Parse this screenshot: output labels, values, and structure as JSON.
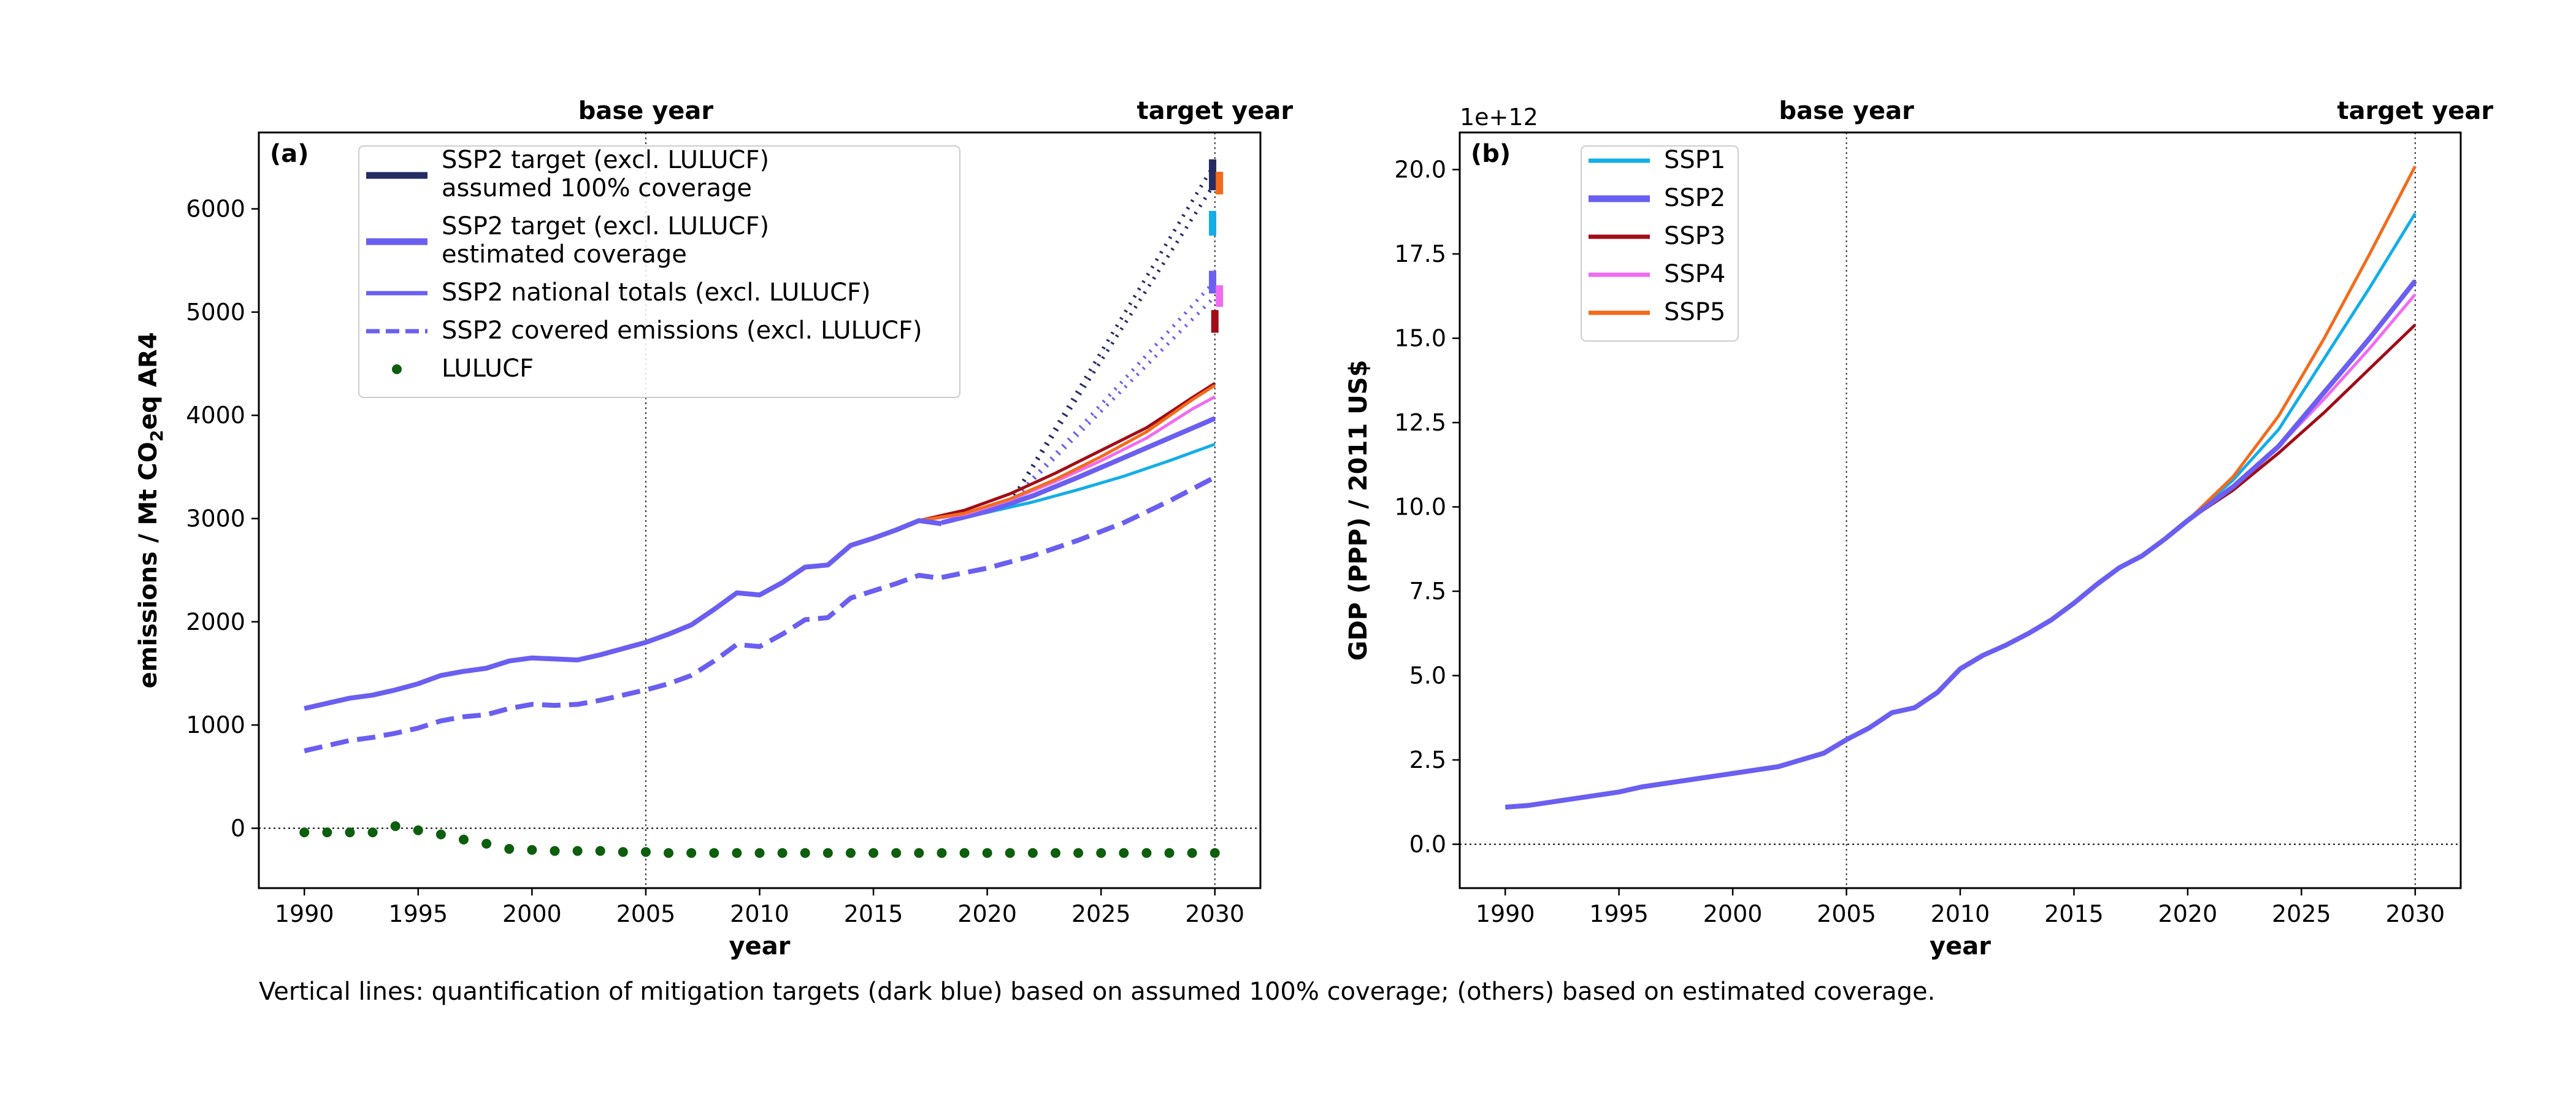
{
  "caption": "Vertical lines: quantification of mitigation targets (dark blue) based on assumed 100% coverage; (others) based on estimated coverage.",
  "colors": {
    "ssp1": "#12aee8",
    "ssp2": "#6a5ff0",
    "ssp3": "#a00d18",
    "ssp4": "#ef6cf0",
    "ssp5": "#f26b1c",
    "target_dark": "#262b62",
    "lulucf": "#0d5e0d"
  },
  "chart_data": [
    {
      "type": "line",
      "panel_label": "(a)",
      "xlabel": "year",
      "ylabel": "emissions / Mt CO₂eq AR4",
      "ylabel_parts": [
        "emissions / Mt CO",
        "2",
        "eq AR4"
      ],
      "xlim": [
        1988,
        2032
      ],
      "ylim": [
        -580,
        6740
      ],
      "xticks": [
        1990,
        1995,
        2000,
        2005,
        2010,
        2015,
        2020,
        2025,
        2030
      ],
      "yticks": [
        0,
        1000,
        2000,
        3000,
        4000,
        5000,
        6000
      ],
      "vlines": [
        {
          "x": 2005,
          "label": "base year"
        },
        {
          "x": 2030,
          "label": "target year"
        }
      ],
      "legend": {
        "placement": "top-left",
        "entries": [
          {
            "text": [
              "SSP2 target (excl. LULUCF)",
              "assumed 100% coverage"
            ],
            "color": "target_dark",
            "style": "thick"
          },
          {
            "text": [
              "SSP2 target (excl. LULUCF)",
              "estimated coverage"
            ],
            "color": "ssp2",
            "style": "thick"
          },
          {
            "text": [
              "SSP2 national totals (excl. LULUCF)"
            ],
            "color": "ssp2",
            "style": "solid"
          },
          {
            "text": [
              "SSP2 covered emissions (excl. LULUCF)"
            ],
            "color": "ssp2",
            "style": "dashed"
          },
          {
            "text": [
              "LULUCF"
            ],
            "color": "lulucf",
            "style": "dot"
          }
        ]
      },
      "historical_national": {
        "x": [
          1990,
          1991,
          1992,
          1993,
          1994,
          1995,
          1996,
          1997,
          1998,
          1999,
          2000,
          2001,
          2002,
          2003,
          2004,
          2005,
          2006,
          2007,
          2008,
          2009,
          2010,
          2011,
          2012,
          2013,
          2014,
          2015,
          2016,
          2017,
          2018
        ],
        "y": [
          1160,
          1210,
          1260,
          1290,
          1340,
          1400,
          1480,
          1520,
          1550,
          1620,
          1650,
          1640,
          1630,
          1680,
          1740,
          1800,
          1880,
          1970,
          2120,
          2280,
          2260,
          2380,
          2530,
          2550,
          2740,
          2810,
          2890,
          2980,
          2950
        ]
      },
      "historical_covered": {
        "x": [
          1990,
          1991,
          1992,
          1993,
          1994,
          1995,
          1996,
          1997,
          1998,
          1999,
          2000,
          2001,
          2002,
          2003,
          2004,
          2005,
          2006,
          2007,
          2008,
          2009,
          2010,
          2011,
          2012,
          2013,
          2014,
          2015,
          2016,
          2017,
          2018
        ],
        "y": [
          750,
          800,
          850,
          880,
          920,
          970,
          1040,
          1080,
          1100,
          1160,
          1200,
          1190,
          1200,
          1240,
          1290,
          1340,
          1400,
          1480,
          1620,
          1780,
          1760,
          1880,
          2020,
          2040,
          2230,
          2300,
          2370,
          2450,
          2420
        ]
      },
      "projections_national": [
        {
          "ssp": "SSP1",
          "x": [
            2018,
            2020,
            2022,
            2024,
            2026,
            2028,
            2030
          ],
          "y": [
            2960,
            3060,
            3160,
            3280,
            3410,
            3560,
            3720
          ]
        },
        {
          "ssp": "SSP2",
          "x": [
            2018,
            2020,
            2022,
            2024,
            2026,
            2028,
            2030
          ],
          "y": [
            2960,
            3070,
            3220,
            3400,
            3590,
            3780,
            3970
          ]
        },
        {
          "ssp": "SSP3",
          "x": [
            2017,
            2019,
            2021,
            2023,
            2025,
            2027,
            2029,
            2030
          ],
          "y": [
            2980,
            3080,
            3240,
            3440,
            3660,
            3880,
            4170,
            4310
          ]
        },
        {
          "ssp": "SSP4",
          "x": [
            2017,
            2019,
            2021,
            2023,
            2025,
            2027,
            2029,
            2030
          ],
          "y": [
            2980,
            3040,
            3180,
            3360,
            3560,
            3780,
            4060,
            4180
          ]
        },
        {
          "ssp": "SSP5",
          "x": [
            2017,
            2019,
            2021,
            2023,
            2025,
            2027,
            2029,
            2030
          ],
          "y": [
            2980,
            3050,
            3190,
            3380,
            3600,
            3840,
            4150,
            4290
          ]
        }
      ],
      "projection_covered_ssp2": {
        "x": [
          2018,
          2020,
          2022,
          2024,
          2026,
          2028,
          2030
        ],
        "y": [
          2430,
          2520,
          2640,
          2790,
          2960,
          3170,
          3400
        ]
      },
      "target_lines": [
        {
          "color": "target_dark",
          "x": [
            2021,
            2030
          ],
          "y": [
            3150,
            6440
          ]
        },
        {
          "color": "target_dark",
          "x": [
            2021,
            2030
          ],
          "y": [
            3150,
            6250
          ]
        },
        {
          "color": "ssp2",
          "x": [
            2021,
            2030
          ],
          "y": [
            3150,
            5300
          ]
        },
        {
          "color": "ssp2",
          "x": [
            2021,
            2030
          ],
          "y": [
            3150,
            5150
          ]
        }
      ],
      "target_markers": [
        {
          "color": "target_dark",
          "x": 2029.9,
          "y": [
            6180,
            6480
          ]
        },
        {
          "color": "ssp5",
          "x": 2030.2,
          "y": [
            6140,
            6360
          ]
        },
        {
          "color": "ssp1",
          "x": 2029.9,
          "y": [
            5740,
            5980
          ]
        },
        {
          "color": "ssp2",
          "x": 2029.9,
          "y": [
            5180,
            5400
          ]
        },
        {
          "color": "ssp4",
          "x": 2030.2,
          "y": [
            5050,
            5260
          ]
        },
        {
          "color": "ssp3",
          "x": 2030.0,
          "y": [
            4800,
            5020
          ]
        }
      ],
      "lulucf": {
        "x": [
          1990,
          1991,
          1992,
          1993,
          1994,
          1995,
          1996,
          1997,
          1998,
          1999,
          2000,
          2001,
          2002,
          2003,
          2004,
          2005,
          2006,
          2007,
          2008,
          2009,
          2010,
          2011,
          2012,
          2013,
          2014,
          2015,
          2016,
          2017,
          2018,
          2019,
          2020,
          2021,
          2022,
          2023,
          2024,
          2025,
          2026,
          2027,
          2028,
          2029,
          2030
        ],
        "y": [
          -40,
          -40,
          -40,
          -40,
          20,
          -20,
          -60,
          -110,
          -150,
          -200,
          -210,
          -220,
          -220,
          -220,
          -230,
          -230,
          -240,
          -240,
          -240,
          -240,
          -240,
          -240,
          -240,
          -240,
          -240,
          -240,
          -240,
          -240,
          -240,
          -240,
          -240,
          -240,
          -240,
          -240,
          -240,
          -240,
          -240,
          -240,
          -240,
          -240,
          -240
        ]
      }
    },
    {
      "type": "line",
      "panel_label": "(b)",
      "xlabel": "year",
      "ylabel": "GDP (PPP) / 2011 US$",
      "offset_label": "1e+12",
      "xlim": [
        1988,
        2032
      ],
      "ylim": [
        -1.3,
        21.1
      ],
      "xticks": [
        1990,
        1995,
        2000,
        2005,
        2010,
        2015,
        2020,
        2025,
        2030
      ],
      "yticks": [
        0.0,
        2.5,
        5.0,
        7.5,
        10.0,
        12.5,
        15.0,
        17.5,
        20.0
      ],
      "ytick_labels": [
        "0.0",
        "2.5",
        "5.0",
        "7.5",
        "10.0",
        "12.5",
        "15.0",
        "17.5",
        "20.0"
      ],
      "vlines": [
        {
          "x": 2005,
          "label": "base year"
        },
        {
          "x": 2030,
          "label": "target year"
        }
      ],
      "legend": {
        "placement": "top-left",
        "entries": [
          {
            "text": [
              "SSP1"
            ],
            "color": "ssp1",
            "style": "solid"
          },
          {
            "text": [
              "SSP2"
            ],
            "color": "ssp2",
            "style": "thick"
          },
          {
            "text": [
              "SSP3"
            ],
            "color": "ssp3",
            "style": "solid"
          },
          {
            "text": [
              "SSP4"
            ],
            "color": "ssp4",
            "style": "solid"
          },
          {
            "text": [
              "SSP5"
            ],
            "color": "ssp5",
            "style": "solid"
          }
        ]
      },
      "historical": {
        "x": [
          1990,
          1991,
          1992,
          1993,
          1994,
          1995,
          1996,
          1997,
          1998,
          1999,
          2000,
          2001,
          2002,
          2003,
          2004,
          2005,
          2006,
          2007,
          2008,
          2009,
          2010,
          2011,
          2012,
          2013,
          2014,
          2015,
          2016,
          2017,
          2018,
          2019,
          2020
        ],
        "y": [
          1.1,
          1.15,
          1.25,
          1.35,
          1.45,
          1.55,
          1.7,
          1.8,
          1.9,
          2.0,
          2.1,
          2.2,
          2.3,
          2.5,
          2.7,
          3.1,
          3.45,
          3.9,
          4.05,
          4.5,
          5.2,
          5.6,
          5.9,
          6.25,
          6.65,
          7.15,
          7.7,
          8.2,
          8.55,
          9.05,
          9.6
        ]
      },
      "series": [
        {
          "name": "SSP1",
          "x": [
            2020,
            2022,
            2024,
            2026,
            2028,
            2030
          ],
          "y": [
            9.6,
            10.8,
            12.3,
            14.4,
            16.5,
            18.7
          ]
        },
        {
          "name": "SSP2",
          "x": [
            2020,
            2022,
            2024,
            2026,
            2028,
            2030
          ],
          "y": [
            9.6,
            10.6,
            11.8,
            13.4,
            15.0,
            16.7
          ]
        },
        {
          "name": "SSP3",
          "x": [
            2020,
            2022,
            2024,
            2026,
            2028,
            2030
          ],
          "y": [
            9.6,
            10.5,
            11.6,
            12.8,
            14.1,
            15.4
          ]
        },
        {
          "name": "SSP4",
          "x": [
            2020,
            2022,
            2024,
            2026,
            2028,
            2030
          ],
          "y": [
            9.6,
            10.6,
            11.8,
            13.2,
            14.7,
            16.3
          ]
        },
        {
          "name": "SSP5",
          "x": [
            2020,
            2022,
            2024,
            2026,
            2028,
            2030
          ],
          "y": [
            9.6,
            10.9,
            12.7,
            15.0,
            17.5,
            20.1
          ]
        }
      ]
    }
  ]
}
